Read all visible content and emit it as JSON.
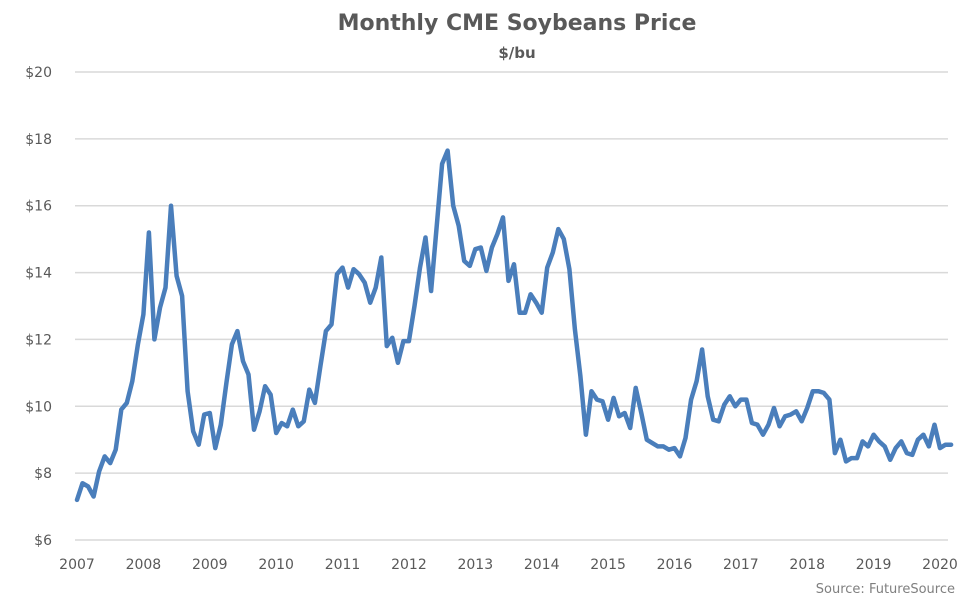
{
  "chart_data": {
    "type": "line",
    "title": "Monthly CME Soybeans Price",
    "subtitle": "$/bu",
    "xlabel": "",
    "ylabel": "",
    "source": "Source: FutureSource",
    "grid": true,
    "legend": "none",
    "ylim": [
      6,
      20
    ],
    "y_ticks": [
      20,
      18,
      16,
      14,
      12,
      10,
      8,
      6
    ],
    "y_tick_labels": [
      "$20",
      "$18",
      "$16",
      "$14",
      "$12",
      "$10",
      "$8",
      "$6"
    ],
    "x_tick_labels": [
      "2007",
      "2008",
      "2009",
      "2010",
      "2011",
      "2012",
      "2013",
      "2014",
      "2015",
      "2016",
      "2017",
      "2018",
      "2019",
      "2020"
    ],
    "x_start": "2007-01",
    "x_unit": "month",
    "series_color": "#4a7ebb",
    "series": [
      {
        "name": "Soybeans Price",
        "values": [
          7.2,
          7.7,
          7.6,
          7.3,
          8.05,
          8.5,
          8.3,
          8.7,
          9.9,
          10.1,
          10.75,
          11.85,
          12.75,
          15.2,
          12.0,
          12.95,
          13.55,
          16.0,
          13.9,
          13.3,
          10.45,
          9.25,
          8.85,
          9.75,
          9.8,
          8.75,
          9.45,
          10.7,
          11.85,
          12.25,
          11.35,
          10.95,
          9.3,
          9.85,
          10.6,
          10.35,
          9.2,
          9.5,
          9.4,
          9.9,
          9.4,
          9.55,
          10.5,
          10.1,
          11.2,
          12.25,
          12.45,
          13.95,
          14.15,
          13.55,
          14.1,
          13.95,
          13.7,
          13.1,
          13.55,
          14.45,
          11.8,
          12.05,
          11.3,
          11.95,
          11.95,
          13.0,
          14.15,
          15.05,
          13.45,
          15.35,
          17.25,
          17.65,
          16.0,
          15.4,
          14.35,
          14.2,
          14.7,
          14.75,
          14.05,
          14.75,
          15.15,
          15.65,
          13.75,
          14.25,
          12.8,
          12.8,
          13.35,
          13.1,
          12.8,
          14.15,
          14.6,
          15.3,
          15.0,
          14.1,
          12.3,
          10.9,
          9.15,
          10.45,
          10.2,
          10.15,
          9.6,
          10.25,
          9.7,
          9.8,
          9.35,
          10.55,
          9.8,
          9.0,
          8.9,
          8.8,
          8.8,
          8.7,
          8.75,
          8.5,
          9.05,
          10.2,
          10.75,
          11.7,
          10.3,
          9.6,
          9.55,
          10.05,
          10.3,
          10.0,
          10.2,
          10.2,
          9.5,
          9.45,
          9.15,
          9.45,
          9.95,
          9.4,
          9.7,
          9.75,
          9.85,
          9.55,
          9.95,
          10.45,
          10.45,
          10.4,
          10.2,
          8.6,
          9.0,
          8.35,
          8.45,
          8.45,
          8.95,
          8.8,
          9.15,
          8.95,
          8.8,
          8.4,
          8.75,
          8.95,
          8.6,
          8.55,
          9.0,
          9.15,
          8.8,
          9.45,
          8.75,
          8.85,
          8.85
        ]
      }
    ]
  }
}
